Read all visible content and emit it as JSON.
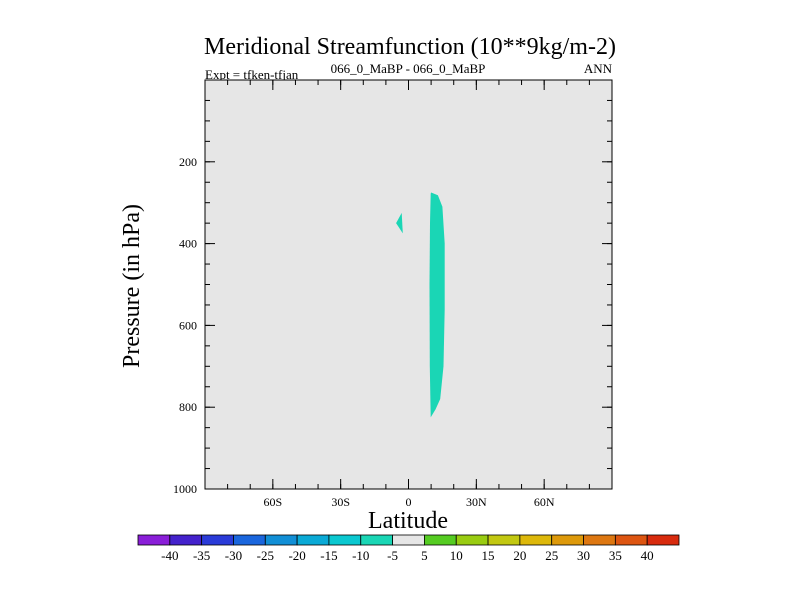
{
  "chart_data": {
    "type": "contour",
    "title": "Meridional Streamfunction (10**9kg/m-2)",
    "subtitle_left": "Expt = tfken-tfjan",
    "subtitle_center": "066_0_MaBP - 066_0_MaBP",
    "subtitle_right": "ANN",
    "xlabel": "Latitude",
    "ylabel": "Pressure (in hPa)",
    "xlim": [
      -90,
      90
    ],
    "ylim": [
      1000,
      0
    ],
    "x_ticks": [
      {
        "value": -60,
        "label": "60S"
      },
      {
        "value": -30,
        "label": "30S"
      },
      {
        "value": 0,
        "label": "0"
      },
      {
        "value": 30,
        "label": "30N"
      },
      {
        "value": 60,
        "label": "60N"
      }
    ],
    "y_ticks": [
      {
        "value": 200,
        "label": "200"
      },
      {
        "value": 400,
        "label": "400"
      },
      {
        "value": 600,
        "label": "600"
      },
      {
        "value": 800,
        "label": "800"
      },
      {
        "value": 1000,
        "label": "1000"
      }
    ],
    "background_value_color": "#e6e6e6",
    "regions": [
      {
        "level": "-10 to -5",
        "color": "#1ad6b5",
        "outline": [
          [
            10,
            275
          ],
          [
            13,
            282
          ],
          [
            15,
            310
          ],
          [
            16,
            400
          ],
          [
            16,
            560
          ],
          [
            15.5,
            700
          ],
          [
            14,
            780
          ],
          [
            12,
            805
          ],
          [
            9.8,
            825
          ],
          [
            9.4,
            700
          ],
          [
            9.3,
            500
          ],
          [
            9.5,
            350
          ],
          [
            9.8,
            278
          ]
        ]
      },
      {
        "level": "-10 to -5",
        "color": "#1ad6b5",
        "outline": [
          [
            -3,
            325
          ],
          [
            -2.5,
            375
          ],
          [
            -5.5,
            350
          ]
        ]
      }
    ],
    "colorbar": {
      "labels": [
        "-40",
        "-35",
        "-30",
        "-25",
        "-20",
        "-15",
        "-10",
        "-5",
        "5",
        "10",
        "15",
        "20",
        "25",
        "30",
        "35",
        "40"
      ],
      "colors": [
        "#8a1ed8",
        "#4422cc",
        "#2a3bd8",
        "#1a66dd",
        "#118fd6",
        "#0aaad6",
        "#0bc8d0",
        "#1ad6b5",
        "#e6e6e6",
        "#55cc22",
        "#99cc11",
        "#c2c811",
        "#ddb80a",
        "#dd990a",
        "#dd7711",
        "#dd5511",
        "#d82b0e"
      ]
    }
  }
}
